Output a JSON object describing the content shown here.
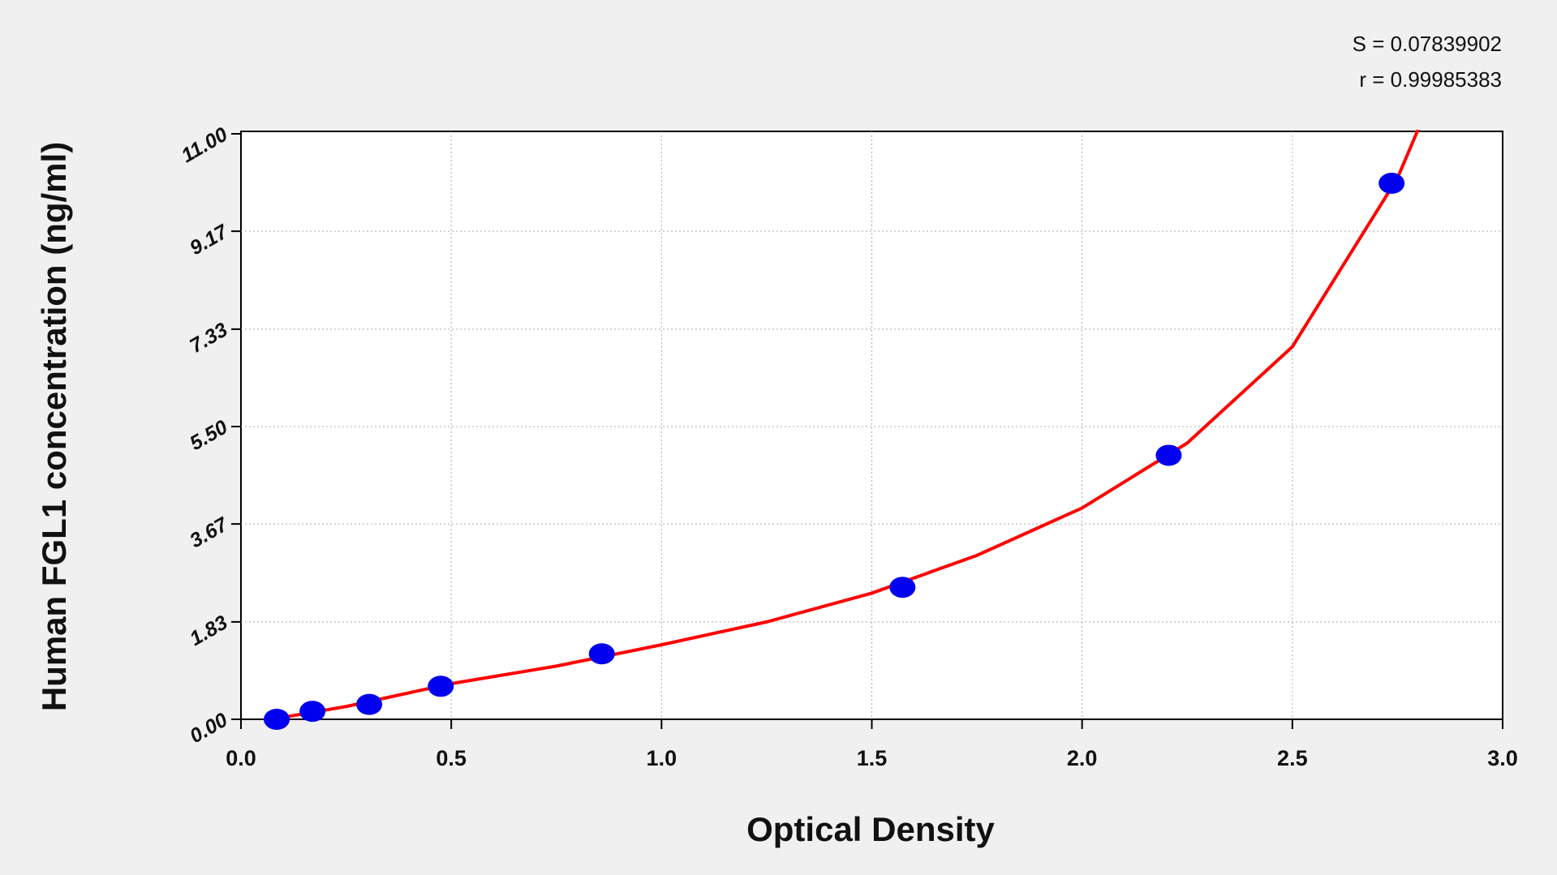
{
  "chart_data": {
    "type": "scatter",
    "annotations": [
      "S = 0.07839902",
      "r = 0.99985383"
    ],
    "xlabel": "Optical Density",
    "ylabel": "Human FGL1 concentration (ng/ml)",
    "series": [
      {
        "type": "scatter",
        "color": "#0000ee",
        "x": [
          0.085,
          0.17,
          0.305,
          0.475,
          0.858,
          1.573,
          2.206,
          2.736
        ],
        "values": [
          0,
          0.15,
          0.28,
          0.62,
          1.23,
          2.48,
          4.96,
          10.07
        ]
      },
      {
        "type": "line",
        "color": "#ff0000",
        "x": [
          0.035,
          0.25,
          0.5,
          0.75,
          1.0,
          1.25,
          1.5,
          1.75,
          2.0,
          2.25,
          2.5,
          2.75,
          2.8
        ],
        "values": [
          -0.05,
          0.24,
          0.67,
          1.0,
          1.4,
          1.83,
          2.37,
          3.08,
          3.97,
          5.19,
          7.0,
          10.17,
          11.1
        ]
      }
    ],
    "xlim": [
      0,
      3
    ],
    "ylim": [
      0,
      11
    ],
    "xticks": [
      {
        "value": 0,
        "label": "0.0"
      },
      {
        "value": 0.5,
        "label": "0.5"
      },
      {
        "value": 1,
        "label": "1.0"
      },
      {
        "value": 1.5,
        "label": "1.5"
      },
      {
        "value": 2,
        "label": "2.0"
      },
      {
        "value": 2.5,
        "label": "2.5"
      },
      {
        "value": 3,
        "label": "3.0"
      }
    ],
    "yticks": [
      {
        "value": 0,
        "label": "0.00"
      },
      1.83,
      3.67,
      {
        "value": 5.5,
        "label": "5.50"
      },
      7.33,
      9.17,
      {
        "value": 11,
        "label": "11.00"
      }
    ],
    "grid": true
  }
}
